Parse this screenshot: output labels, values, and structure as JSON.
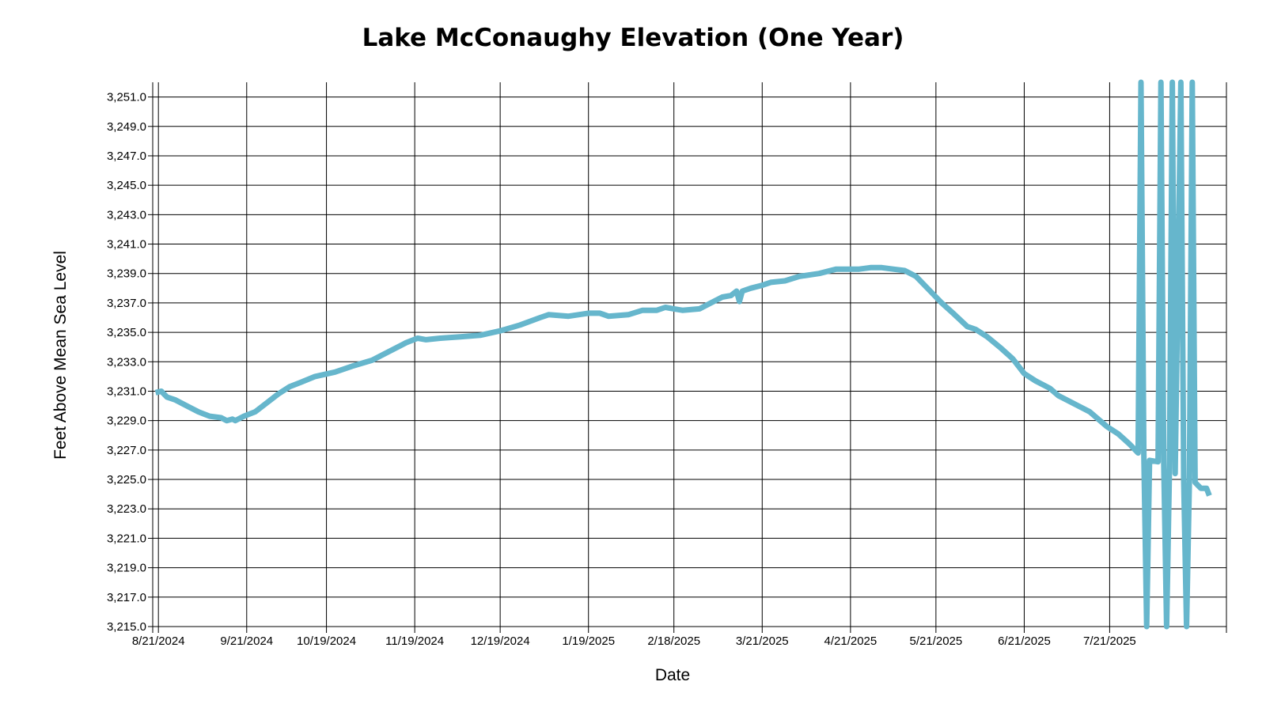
{
  "chart_data": {
    "type": "line",
    "title": "Lake McConaughy Elevation (One Year)",
    "xlabel": "Date",
    "ylabel": "Feet Above Mean Sea Level",
    "x_range": [
      "2024-08-19",
      "2025-08-31"
    ],
    "ylim": [
      3215.0,
      3252.0
    ],
    "grid": true,
    "legend": "none",
    "line_color": "#66b6cc",
    "x_ticks": [
      {
        "date": "2024-08-21",
        "label": "8/21/2024"
      },
      {
        "date": "2024-09-21",
        "label": "9/21/2024"
      },
      {
        "date": "2024-10-19",
        "label": "10/19/2024"
      },
      {
        "date": "2024-11-19",
        "label": "11/19/2024"
      },
      {
        "date": "2024-12-19",
        "label": "12/19/2024"
      },
      {
        "date": "2025-01-19",
        "label": "1/19/2025"
      },
      {
        "date": "2025-02-18",
        "label": "2/18/2025"
      },
      {
        "date": "2025-03-21",
        "label": "3/21/2025"
      },
      {
        "date": "2025-04-21",
        "label": "4/21/2025"
      },
      {
        "date": "2025-05-21",
        "label": "5/21/2025"
      },
      {
        "date": "2025-06-21",
        "label": "6/21/2025"
      },
      {
        "date": "2025-07-21",
        "label": "7/21/2025"
      }
    ],
    "y_ticks": [
      {
        "value": 3251.0,
        "label": "3,251.0"
      },
      {
        "value": 3249.0,
        "label": "3,249.0"
      },
      {
        "value": 3247.0,
        "label": "3,247.0"
      },
      {
        "value": 3245.0,
        "label": "3,245.0"
      },
      {
        "value": 3243.0,
        "label": "3,243.0"
      },
      {
        "value": 3241.0,
        "label": "3,241.0"
      },
      {
        "value": 3239.0,
        "label": "3,239.0"
      },
      {
        "value": 3237.0,
        "label": "3,237.0"
      },
      {
        "value": 3235.0,
        "label": "3,235.0"
      },
      {
        "value": 3233.0,
        "label": "3,233.0"
      },
      {
        "value": 3231.0,
        "label": "3,231.0"
      },
      {
        "value": 3229.0,
        "label": "3,229.0"
      },
      {
        "value": 3227.0,
        "label": "3,227.0"
      },
      {
        "value": 3225.0,
        "label": "3,225.0"
      },
      {
        "value": 3223.0,
        "label": "3,223.0"
      },
      {
        "value": 3221.0,
        "label": "3,221.0"
      },
      {
        "value": 3219.0,
        "label": "3,219.0"
      },
      {
        "value": 3217.0,
        "label": "3,217.0"
      },
      {
        "value": 3215.0,
        "label": "3,215.0"
      }
    ],
    "series": [
      {
        "points": [
          [
            "2024-08-20",
            3230.9
          ],
          [
            "2024-08-22",
            3231.0
          ],
          [
            "2024-08-24",
            3230.6
          ],
          [
            "2024-08-27",
            3230.4
          ],
          [
            "2024-08-31",
            3230.0
          ],
          [
            "2024-09-04",
            3229.6
          ],
          [
            "2024-09-08",
            3229.3
          ],
          [
            "2024-09-12",
            3229.2
          ],
          [
            "2024-09-14",
            3229.0
          ],
          [
            "2024-09-16",
            3229.1
          ],
          [
            "2024-09-17",
            3229.0
          ],
          [
            "2024-09-20",
            3229.3
          ],
          [
            "2024-09-24",
            3229.6
          ],
          [
            "2024-09-28",
            3230.2
          ],
          [
            "2024-10-02",
            3230.8
          ],
          [
            "2024-10-06",
            3231.3
          ],
          [
            "2024-10-10",
            3231.6
          ],
          [
            "2024-10-15",
            3232.0
          ],
          [
            "2024-10-22",
            3232.3
          ],
          [
            "2024-10-28",
            3232.7
          ],
          [
            "2024-11-04",
            3233.1
          ],
          [
            "2024-11-10",
            3233.7
          ],
          [
            "2024-11-16",
            3234.3
          ],
          [
            "2024-11-20",
            3234.6
          ],
          [
            "2024-11-23",
            3234.5
          ],
          [
            "2024-11-28",
            3234.6
          ],
          [
            "2024-12-05",
            3234.7
          ],
          [
            "2024-12-12",
            3234.8
          ],
          [
            "2024-12-19",
            3235.1
          ],
          [
            "2024-12-26",
            3235.5
          ],
          [
            "2025-01-02",
            3236.0
          ],
          [
            "2025-01-05",
            3236.2
          ],
          [
            "2025-01-12",
            3236.1
          ],
          [
            "2025-01-19",
            3236.3
          ],
          [
            "2025-01-23",
            3236.3
          ],
          [
            "2025-01-26",
            3236.1
          ],
          [
            "2025-02-02",
            3236.2
          ],
          [
            "2025-02-07",
            3236.5
          ],
          [
            "2025-02-12",
            3236.5
          ],
          [
            "2025-02-15",
            3236.7
          ],
          [
            "2025-02-18",
            3236.6
          ],
          [
            "2025-02-21",
            3236.5
          ],
          [
            "2025-02-27",
            3236.6
          ],
          [
            "2025-03-03",
            3237.0
          ],
          [
            "2025-03-07",
            3237.4
          ],
          [
            "2025-03-10",
            3237.5
          ],
          [
            "2025-03-12",
            3237.8
          ],
          [
            "2025-03-13",
            3237.1
          ],
          [
            "2025-03-14",
            3237.8
          ],
          [
            "2025-03-17",
            3238.0
          ],
          [
            "2025-03-21",
            3238.2
          ],
          [
            "2025-03-24",
            3238.4
          ],
          [
            "2025-03-29",
            3238.5
          ],
          [
            "2025-04-03",
            3238.8
          ],
          [
            "2025-04-10",
            3239.0
          ],
          [
            "2025-04-16",
            3239.3
          ],
          [
            "2025-04-24",
            3239.3
          ],
          [
            "2025-04-28",
            3239.4
          ],
          [
            "2025-05-02",
            3239.4
          ],
          [
            "2025-05-06",
            3239.3
          ],
          [
            "2025-05-10",
            3239.2
          ],
          [
            "2025-05-14",
            3238.8
          ],
          [
            "2025-05-19",
            3237.8
          ],
          [
            "2025-05-23",
            3237.0
          ],
          [
            "2025-05-27",
            3236.3
          ],
          [
            "2025-06-01",
            3235.4
          ],
          [
            "2025-06-04",
            3235.2
          ],
          [
            "2025-06-08",
            3234.7
          ],
          [
            "2025-06-13",
            3233.9
          ],
          [
            "2025-06-17",
            3233.2
          ],
          [
            "2025-06-21",
            3232.2
          ],
          [
            "2025-06-25",
            3231.7
          ],
          [
            "2025-06-30",
            3231.2
          ],
          [
            "2025-07-03",
            3230.7
          ],
          [
            "2025-07-08",
            3230.2
          ],
          [
            "2025-07-14",
            3229.6
          ],
          [
            "2025-07-17",
            3229.1
          ],
          [
            "2025-07-20",
            3228.6
          ],
          [
            "2025-07-24",
            3228.1
          ],
          [
            "2025-07-28",
            3227.4
          ],
          [
            "2025-07-31",
            3226.8
          ],
          [
            "2025-08-01",
            3252.0
          ],
          [
            "2025-08-02",
            3226.8
          ],
          [
            "2025-08-03",
            3215.0
          ],
          [
            "2025-08-04",
            3226.3
          ],
          [
            "2025-08-07",
            3226.2
          ],
          [
            "2025-08-08",
            3252.0
          ],
          [
            "2025-08-09",
            3226.1
          ],
          [
            "2025-08-10",
            3215.0
          ],
          [
            "2025-08-11",
            3225.8
          ],
          [
            "2025-08-12",
            3252.0
          ],
          [
            "2025-08-13",
            3225.4
          ],
          [
            "2025-08-15",
            3252.0
          ],
          [
            "2025-08-16",
            3225.0
          ],
          [
            "2025-08-17",
            3215.0
          ],
          [
            "2025-08-18",
            3225.0
          ],
          [
            "2025-08-19",
            3252.0
          ],
          [
            "2025-08-20",
            3224.8
          ],
          [
            "2025-08-22",
            3224.4
          ],
          [
            "2025-08-24",
            3224.4
          ],
          [
            "2025-08-25",
            3223.9
          ]
        ]
      }
    ]
  }
}
